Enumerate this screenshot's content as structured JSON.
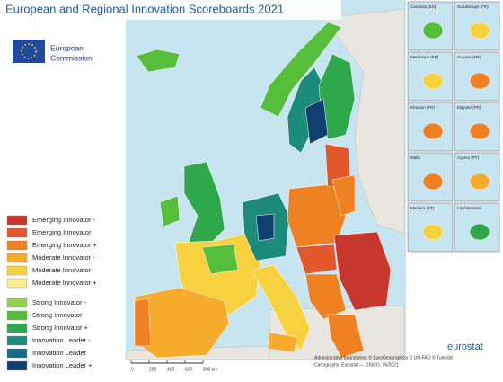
{
  "title": "European and Regional Innovation Scoreboards 2021",
  "logo": {
    "line1": "European",
    "line2": "Commission"
  },
  "legend": [
    {
      "name": "Emerging Innovator -",
      "color": "#c8372d"
    },
    {
      "name": "Emerging Innovator",
      "color": "#e2582b"
    },
    {
      "name": "Emerging Innovator +",
      "color": "#ef8122"
    },
    {
      "name": "Moderate Innovator -",
      "color": "#f6ab2c"
    },
    {
      "name": "Moderate Innovator",
      "color": "#f8d23e"
    },
    {
      "name": "Moderate Innovator +",
      "color": "#fbee93"
    },
    {
      "name": "Strong Innovator -",
      "color": "#93d24d"
    },
    {
      "name": "Strong Innovator",
      "color": "#55bf3c"
    },
    {
      "name": "Strong Innovator +",
      "color": "#2fa84c"
    },
    {
      "name": "Innovation Leader -",
      "color": "#1b8b7b"
    },
    {
      "name": "Innovation Leader",
      "color": "#146b87"
    },
    {
      "name": "Innovation Leader +",
      "color": "#0e3f6f"
    }
  ],
  "scale": [
    "0",
    "200",
    "400",
    "600",
    "800 km"
  ],
  "insets": [
    "Canarias (ES)",
    "Guadeloupe (FR)",
    "Martinique (FR)",
    "Guyane (FR)",
    "Réunion (FR)",
    "Mayotte (FR)",
    "Malta",
    "Açores (PT)",
    "Madeira (PT)",
    "Liechtenstein"
  ],
  "footer": {
    "line1": "Administrative boundaries: © EuroGeographics © UN-FAO © Turkstat",
    "line2": "Cartography: Eurostat — GISCO, 05/2021",
    "brand": "eurostat"
  }
}
